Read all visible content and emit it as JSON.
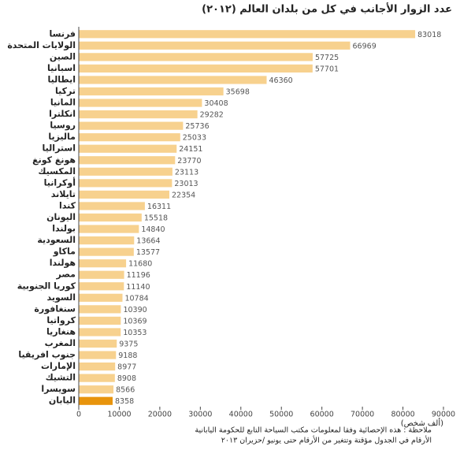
{
  "chart_data": {
    "type": "hbar",
    "title": "عدد الزوار الأجانب في كل من بلدان العالم (٢٠١٢)",
    "x_label": "(ألف شخص)",
    "notes": [
      "ملاحظة : هذه الإحصائية وفقا لمعلومات مكتب السياحة التابع للحكومة اليابانية",
      "الأرقام في الجدول مؤقتة وتتغير من الأرقام حتى يونيو /حزيران ٢٠١٣"
    ],
    "categories": [
      "فرنسا",
      "الولايات المتحدة",
      "الصين",
      "اسبانيا",
      "ايطاليا",
      "تركيا",
      "المانيا",
      "انكلترا",
      "روسيا",
      "ماليزيا",
      "استراليا",
      "هونغ كونغ",
      "المكسيك",
      "أوكرانيا",
      "تايلاند",
      "كندا",
      "اليونان",
      "بولندا",
      "السعودية",
      "ماكاو",
      "هولندا",
      "مصر",
      "كوريا الجنوبية",
      "السويد",
      "سنغافورة",
      "كرواتيا",
      "هنغاريا",
      "المغرب",
      "جنوب افريقيا",
      "الإمارات",
      "التشيك",
      "سويسرا",
      "اليابان"
    ],
    "values": [
      83018,
      66969,
      57725,
      57701,
      46360,
      35698,
      30408,
      29282,
      25736,
      25033,
      24151,
      23770,
      23113,
      23013,
      22354,
      16311,
      15518,
      14840,
      13664,
      13577,
      11680,
      11196,
      11140,
      10784,
      10390,
      10369,
      10353,
      9375,
      9188,
      8977,
      8908,
      8566,
      8358
    ],
    "color": "#f7d18e",
    "highlight": {
      "index": 32,
      "color": "#e8940c"
    },
    "xlim": [
      0,
      90000
    ],
    "xticks": [
      0,
      10000,
      20000,
      30000,
      40000,
      50000,
      60000,
      70000,
      80000,
      90000
    ]
  }
}
